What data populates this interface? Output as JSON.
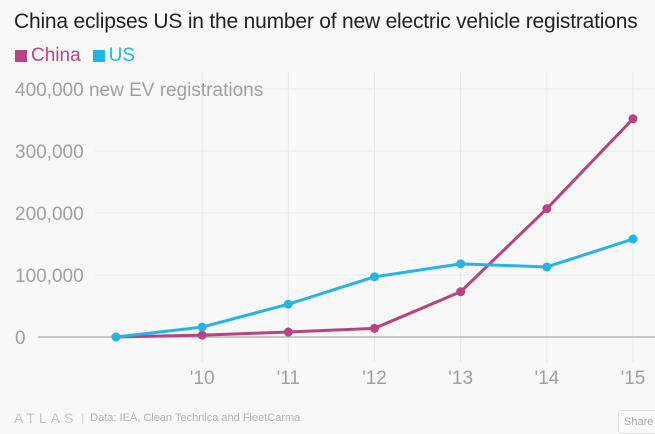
{
  "chart_data": {
    "type": "line",
    "title": "China eclipses US in the number of new electric vehicle registrations",
    "ylabel": "new EV registrations",
    "xlabel": "",
    "x": [
      2009,
      2010,
      2011,
      2012,
      2013,
      2014,
      2015
    ],
    "x_tick_labels": [
      "",
      "'10",
      "'11",
      "'12",
      "'13",
      "'14",
      "'15"
    ],
    "y_ticks": [
      0,
      100000,
      200000,
      300000,
      400000
    ],
    "y_tick_labels": [
      "0",
      "100,000",
      "200,000",
      "300,000",
      "400,000 new EV registrations"
    ],
    "ylim": [
      0,
      400000
    ],
    "grid": true,
    "legend_position": "top-left",
    "series": [
      {
        "name": "China",
        "color": "#b8447f",
        "values": [
          0,
          3000,
          8000,
          14000,
          73000,
          207000,
          352000
        ]
      },
      {
        "name": "US",
        "color": "#25b4e6",
        "values": [
          0,
          16000,
          53000,
          97000,
          118000,
          113000,
          158000
        ]
      }
    ]
  },
  "footer": {
    "brand": "ATLAS",
    "source": "Data:  IEA, Clean Technica and FleetCarma",
    "share_label": "Share"
  }
}
